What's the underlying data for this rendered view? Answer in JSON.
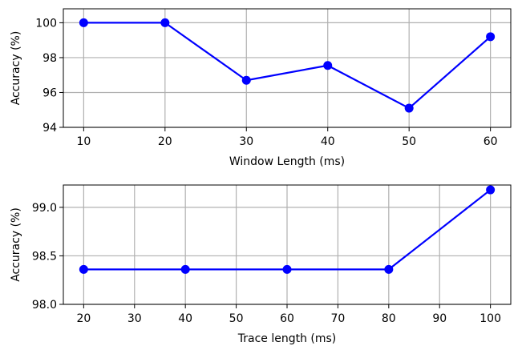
{
  "chart_data": [
    {
      "type": "line",
      "xlabel": "Window Length (ms)",
      "ylabel": "Accuracy (%)",
      "x": [
        10,
        20,
        30,
        40,
        50,
        60
      ],
      "series": [
        {
          "values": [
            100.0,
            100.0,
            96.7,
            97.55,
            95.1,
            99.2
          ],
          "color": "#0000ff"
        }
      ],
      "xlim": [
        7.5,
        62.5
      ],
      "ylim": [
        94,
        100.8
      ],
      "xticks": [
        10,
        20,
        30,
        40,
        50,
        60
      ],
      "xtick_labels": [
        "10",
        "20",
        "30",
        "40",
        "50",
        "60"
      ],
      "yticks": [
        94,
        96,
        98,
        100
      ],
      "ytick_labels": [
        "94",
        "96",
        "98",
        "100"
      ],
      "grid": true,
      "marker": "circle"
    },
    {
      "type": "line",
      "xlabel": "Trace length (ms)",
      "ylabel": "Accuracy (%)",
      "x": [
        20,
        40,
        60,
        80,
        100
      ],
      "series": [
        {
          "values": [
            98.36,
            98.36,
            98.36,
            98.36,
            99.18
          ],
          "color": "#0000ff"
        }
      ],
      "xlim": [
        16,
        104
      ],
      "ylim": [
        98.0,
        99.23
      ],
      "xticks": [
        20,
        30,
        40,
        50,
        60,
        70,
        80,
        90,
        100
      ],
      "xtick_labels": [
        "20",
        "30",
        "40",
        "50",
        "60",
        "70",
        "80",
        "90",
        "100"
      ],
      "yticks": [
        98.0,
        98.5,
        99.0
      ],
      "ytick_labels": [
        "98.0",
        "98.5",
        "99.0"
      ],
      "grid": true,
      "marker": "circle"
    }
  ]
}
